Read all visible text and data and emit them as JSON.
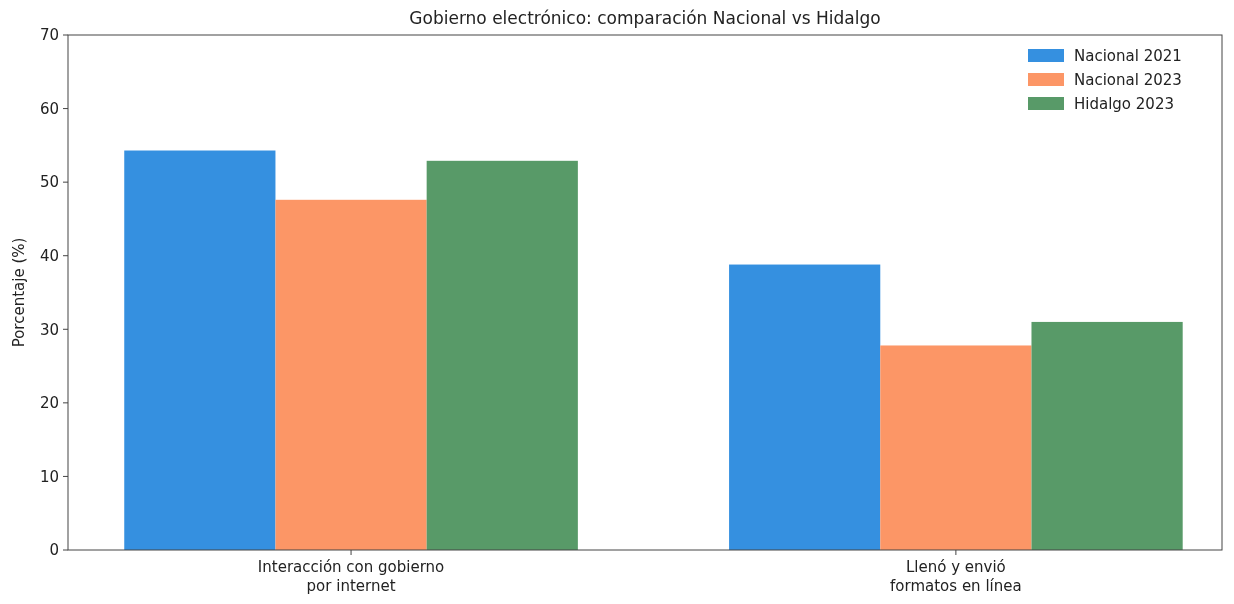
{
  "chart_data": {
    "type": "bar",
    "title": "Gobierno electrónico: comparación Nacional vs Hidalgo",
    "ylabel": "Porcentaje (%)",
    "categories": [
      "Interacción con gobierno\npor internet",
      "Llenó y envió\nformatos en línea"
    ],
    "series": [
      {
        "name": "Nacional 2021",
        "color": "#3590e0",
        "values": [
          54.3,
          38.8
        ]
      },
      {
        "name": "Nacional 2023",
        "color": "#fc9666",
        "values": [
          47.6,
          27.8
        ]
      },
      {
        "name": "Hidalgo 2023",
        "color": "#589a68",
        "values": [
          52.9,
          31.0
        ]
      }
    ],
    "ylim": [
      0,
      70
    ],
    "yticks": [
      0,
      10,
      20,
      30,
      40,
      50,
      60,
      70
    ],
    "legend": "top right"
  }
}
